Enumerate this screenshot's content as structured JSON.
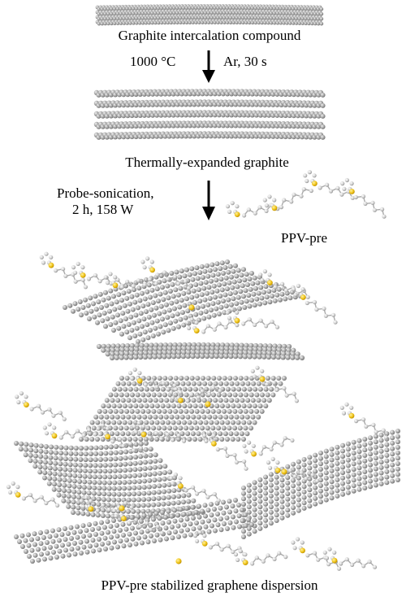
{
  "labels": {
    "gic": "Graphite intercalation compound",
    "temp": "1000 °C",
    "ar": "Ar, 30 s",
    "teg": "Thermally-expanded graphite",
    "sonic_line1": "Probe-sonication,",
    "sonic_line2": "2 h, 158 W",
    "ppv": "PPV-pre",
    "dispersion": "PPV-pre stabilized graphene dispersion"
  },
  "colors": {
    "carbon": "#9a9a9a",
    "carbon_light": "#d0d0d0",
    "polymer_atom": "#c8c8c8",
    "sulfur": "#f0c419",
    "arrow": "#000000"
  },
  "stack_counts": {
    "gic_layers": 4,
    "teg_layers": 5
  }
}
